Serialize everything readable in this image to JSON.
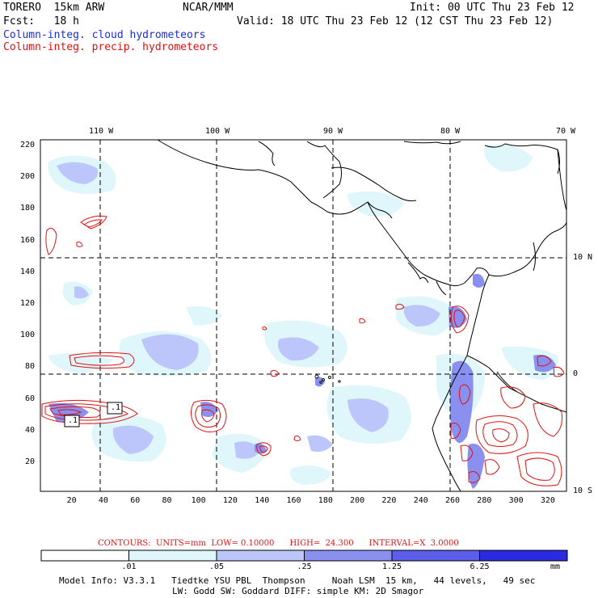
{
  "header": {
    "model": "TORERO  15km ARW",
    "center": "NCAR/MMM",
    "init": "Init: 00 UTC Thu 23 Feb 12",
    "fcst": "Fcst:   18 h",
    "valid": "Valid: 18 UTC Thu 23 Feb 12 (12 CST Thu 23 Feb 12)",
    "legend_cloud": "Column-integ. cloud hydrometeors",
    "legend_precip": "Column-integ. precip. hydrometeors"
  },
  "map": {
    "lon_labels": [
      "110 W",
      "100 W",
      "90 W",
      "80 W",
      "70 W"
    ],
    "lat_labels": [
      "10 N",
      "0",
      "10 S"
    ],
    "y_ticks": [
      "220",
      "200",
      "180",
      "160",
      "140",
      "120",
      "100",
      "80",
      "60",
      "40",
      "20"
    ],
    "x_ticks": [
      "20",
      "40",
      "60",
      "80",
      "100",
      "120",
      "140",
      "160",
      "180",
      "200",
      "220",
      "240",
      "260",
      "280",
      "300",
      "320"
    ],
    "max_labels": [
      ".1",
      ".1"
    ]
  },
  "contours": {
    "text": "CONTOURS:  UNITS=mm  LOW= 0.10000      HIGH=  24.300      INTERVAL=X  3.0000"
  },
  "colorbar": {
    "levels": [
      ".01",
      ".05",
      ".25",
      "1.25",
      "6.25"
    ],
    "units": "mm",
    "colors": [
      "#ffffff",
      "#dff6fa",
      "#bcc6fa",
      "#8a90f0",
      "#5a5ee8",
      "#2a2ae0"
    ]
  },
  "footer": {
    "line1": "Model Info: V3.3.1   Tiedtke YSU PBL  Thompson     Noah LSM  15 km,   44 levels,   49 sec",
    "line2": "LW: Godd SW: Goddard DIFF: simple KM: 2D Smagor"
  },
  "colors": {
    "cloud_text": "#1a2fd0",
    "precip_contour": "#e01010"
  }
}
